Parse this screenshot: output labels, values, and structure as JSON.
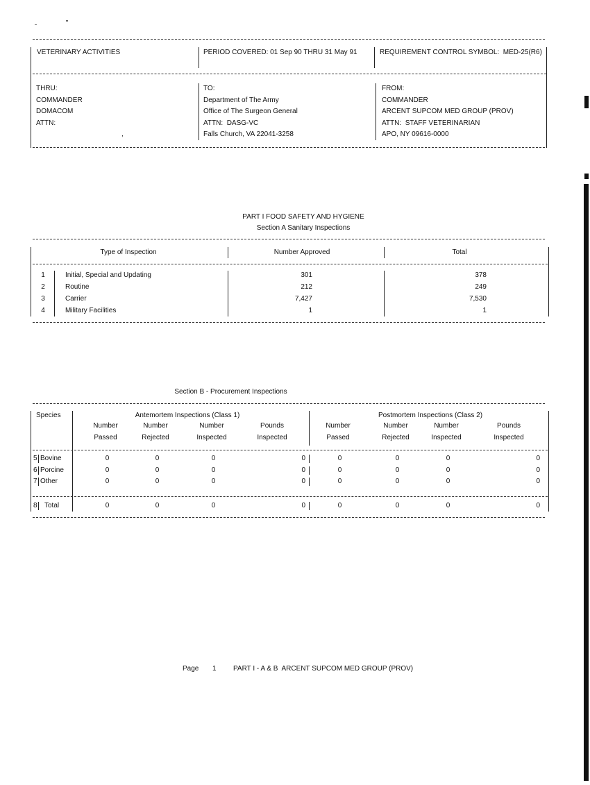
{
  "header": {
    "title": "VETERINARY ACTIVITIES",
    "period": "PERIOD COVERED: 01 Sep 90 THRU 31 May 91",
    "rcs": "REQUIREMENT CONTROL SYMBOL:  MED-25(R6)"
  },
  "thru": [
    "THRU:",
    "COMMANDER",
    "DOMACOM",
    "ATTN:",
    ","
  ],
  "to": [
    "TO:",
    "Department of The Army",
    "Office of The Surgeon General",
    "ATTN:  DASG-VC",
    "Falls Church, VA 22041-3258"
  ],
  "from": [
    "FROM:",
    "COMMANDER",
    "ARCENT SUPCOM MED GROUP (PROV)",
    "ATTN:  STAFF VETERINARIAN",
    "APO, NY 09616-0000"
  ],
  "part_title": "PART I FOOD SAFETY AND HYGIENE",
  "section_a": {
    "title": "Section A Sanitary Inspections",
    "headers": [
      "Type of Inspection",
      "Number Approved",
      "Total"
    ],
    "rows": [
      {
        "num": "1",
        "type": "Initial, Special and Updating",
        "approved": "301",
        "total": "378"
      },
      {
        "num": "2",
        "type": "Routine",
        "approved": "212",
        "total": "249"
      },
      {
        "num": "3",
        "type": "Carrier",
        "approved": "7,427",
        "total": "7,530"
      },
      {
        "num": "4",
        "type": "Military Facilities",
        "approved": "1",
        "total": "1"
      }
    ]
  },
  "section_b": {
    "title": "Section B - Procurement Inspections",
    "species_header": "Species",
    "group1": "Antemortem Inspections (Class 1)",
    "group2": "Postmortem Inspections (Class 2)",
    "sub_top": [
      "Number",
      "Number",
      "Number",
      "Pounds"
    ],
    "sub_bottom": [
      "Passed",
      "Rejected",
      "Inspected",
      "Inspected"
    ],
    "rows": [
      {
        "num": "5",
        "species": "Bovine",
        "values": [
          "0",
          "0",
          "0",
          "0",
          "0",
          "0",
          "0",
          "0"
        ]
      },
      {
        "num": "6",
        "species": "Porcine",
        "values": [
          "0",
          "0",
          "0",
          "0",
          "0",
          "0",
          "0",
          "0"
        ]
      },
      {
        "num": "7",
        "species": "Other",
        "values": [
          "0",
          "0",
          "0",
          "0",
          "0",
          "0",
          "0",
          "0"
        ]
      }
    ],
    "total": {
      "num": "8",
      "species": "Total",
      "values": [
        "0",
        "0",
        "0",
        "0",
        "0",
        "0",
        "0",
        "0"
      ]
    }
  },
  "footer": {
    "page_label": "Page",
    "page_number": "1",
    "text": "PART I - A & B  ARCENT SUPCOM MED GROUP (PROV)"
  }
}
